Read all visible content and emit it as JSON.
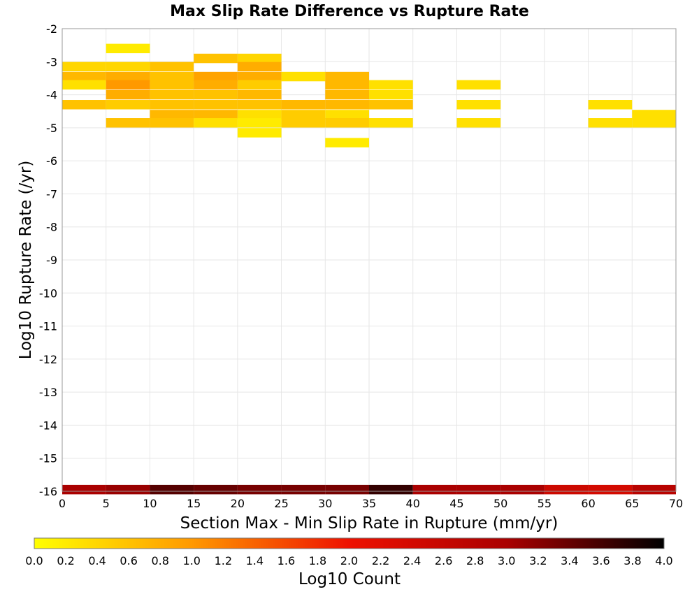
{
  "chart_data": {
    "type": "heatmap",
    "title": "Max Slip Rate Difference vs Rupture Rate",
    "xlabel": "Section Max - Min Slip Rate in Rupture (mm/yr)",
    "ylabel": "Log10 Rupture Rate (/yr)",
    "xlim": [
      0,
      70
    ],
    "ylim": [
      -16,
      -2
    ],
    "x_ticks": [
      "0",
      "5",
      "10",
      "15",
      "20",
      "25",
      "30",
      "35",
      "40",
      "45",
      "50",
      "55",
      "60",
      "65",
      "70"
    ],
    "y_ticks": [
      "-2",
      "-3",
      "-4",
      "-5",
      "-6",
      "-7",
      "-8",
      "-9",
      "-10",
      "-11",
      "-12",
      "-13",
      "-14",
      "-15",
      "-16"
    ],
    "grid": true,
    "x_bin_width": 5,
    "y_bin_width": 0.285,
    "colorbar": {
      "label": "Log10 Count",
      "range": [
        0,
        4
      ],
      "ticks": [
        "0.0",
        "0.2",
        "0.4",
        "0.6",
        "0.8",
        "1.0",
        "1.2",
        "1.4",
        "1.6",
        "1.8",
        "2.0",
        "2.2",
        "2.4",
        "2.6",
        "2.8",
        "3.0",
        "3.2",
        "3.4",
        "3.6",
        "3.8",
        "4.0"
      ],
      "colors": [
        "#ffff00",
        "#ff9900",
        "#ee1100",
        "#aa0000",
        "#000000"
      ]
    },
    "cells": [
      {
        "x": 5,
        "y": -2.6,
        "value": 0.2
      },
      {
        "x": 0,
        "y": -3.15,
        "value": 0.4
      },
      {
        "x": 5,
        "y": -3.15,
        "value": 0.4
      },
      {
        "x": 10,
        "y": -3.15,
        "value": 0.6
      },
      {
        "x": 15,
        "y": -2.9,
        "value": 0.6
      },
      {
        "x": 20,
        "y": -2.9,
        "value": 0.4
      },
      {
        "x": 20,
        "y": -3.15,
        "value": 0.8
      },
      {
        "x": 0,
        "y": -3.45,
        "value": 0.7
      },
      {
        "x": 5,
        "y": -3.45,
        "value": 0.8
      },
      {
        "x": 10,
        "y": -3.45,
        "value": 0.6
      },
      {
        "x": 15,
        "y": -3.45,
        "value": 0.9
      },
      {
        "x": 20,
        "y": -3.45,
        "value": 0.8
      },
      {
        "x": 25,
        "y": -3.45,
        "value": 0.3
      },
      {
        "x": 30,
        "y": -3.45,
        "value": 0.7
      },
      {
        "x": 0,
        "y": -3.7,
        "value": 0.3
      },
      {
        "x": 5,
        "y": -3.7,
        "value": 1.0
      },
      {
        "x": 10,
        "y": -3.7,
        "value": 0.6
      },
      {
        "x": 15,
        "y": -3.7,
        "value": 0.8
      },
      {
        "x": 20,
        "y": -3.7,
        "value": 0.5
      },
      {
        "x": 30,
        "y": -3.7,
        "value": 0.7
      },
      {
        "x": 35,
        "y": -3.7,
        "value": 0.3
      },
      {
        "x": 45,
        "y": -3.7,
        "value": 0.3
      },
      {
        "x": 5,
        "y": -4.0,
        "value": 0.8
      },
      {
        "x": 10,
        "y": -4.0,
        "value": 0.6
      },
      {
        "x": 15,
        "y": -4.0,
        "value": 0.6
      },
      {
        "x": 20,
        "y": -4.0,
        "value": 0.7
      },
      {
        "x": 30,
        "y": -4.0,
        "value": 0.7
      },
      {
        "x": 35,
        "y": -4.0,
        "value": 0.3
      },
      {
        "x": 0,
        "y": -4.3,
        "value": 0.6
      },
      {
        "x": 5,
        "y": -4.3,
        "value": 0.5
      },
      {
        "x": 10,
        "y": -4.3,
        "value": 0.6
      },
      {
        "x": 15,
        "y": -4.3,
        "value": 0.6
      },
      {
        "x": 20,
        "y": -4.3,
        "value": 0.6
      },
      {
        "x": 25,
        "y": -4.3,
        "value": 0.7
      },
      {
        "x": 30,
        "y": -4.3,
        "value": 0.7
      },
      {
        "x": 35,
        "y": -4.3,
        "value": 0.6
      },
      {
        "x": 45,
        "y": -4.3,
        "value": 0.3
      },
      {
        "x": 60,
        "y": -4.3,
        "value": 0.3
      },
      {
        "x": 10,
        "y": -4.6,
        "value": 0.7
      },
      {
        "x": 15,
        "y": -4.6,
        "value": 0.7
      },
      {
        "x": 20,
        "y": -4.6,
        "value": 0.3
      },
      {
        "x": 25,
        "y": -4.6,
        "value": 0.5
      },
      {
        "x": 30,
        "y": -4.6,
        "value": 0.3
      },
      {
        "x": 65,
        "y": -4.6,
        "value": 0.3
      },
      {
        "x": 5,
        "y": -4.85,
        "value": 0.6
      },
      {
        "x": 10,
        "y": -4.85,
        "value": 0.6
      },
      {
        "x": 15,
        "y": -4.85,
        "value": 0.3
      },
      {
        "x": 20,
        "y": -4.85,
        "value": 0.2
      },
      {
        "x": 25,
        "y": -4.85,
        "value": 0.5
      },
      {
        "x": 30,
        "y": -4.85,
        "value": 0.5
      },
      {
        "x": 35,
        "y": -4.85,
        "value": 0.3
      },
      {
        "x": 45,
        "y": -4.85,
        "value": 0.3
      },
      {
        "x": 60,
        "y": -4.85,
        "value": 0.3
      },
      {
        "x": 65,
        "y": -4.85,
        "value": 0.3
      },
      {
        "x": 20,
        "y": -5.15,
        "value": 0.2
      },
      {
        "x": 30,
        "y": -5.45,
        "value": 0.2
      },
      {
        "x": 0,
        "y": -15.95,
        "value": 3.0
      },
      {
        "x": 5,
        "y": -15.95,
        "value": 3.1
      },
      {
        "x": 10,
        "y": -15.95,
        "value": 3.5
      },
      {
        "x": 15,
        "y": -15.95,
        "value": 3.4
      },
      {
        "x": 20,
        "y": -15.95,
        "value": 3.3
      },
      {
        "x": 25,
        "y": -15.95,
        "value": 3.3
      },
      {
        "x": 30,
        "y": -15.95,
        "value": 3.3
      },
      {
        "x": 35,
        "y": -15.95,
        "value": 3.7
      },
      {
        "x": 40,
        "y": -15.95,
        "value": 3.0
      },
      {
        "x": 45,
        "y": -15.95,
        "value": 3.0
      },
      {
        "x": 50,
        "y": -15.95,
        "value": 3.0
      },
      {
        "x": 55,
        "y": -15.95,
        "value": 2.5
      },
      {
        "x": 60,
        "y": -15.95,
        "value": 2.4
      },
      {
        "x": 65,
        "y": -15.95,
        "value": 2.8
      }
    ]
  }
}
